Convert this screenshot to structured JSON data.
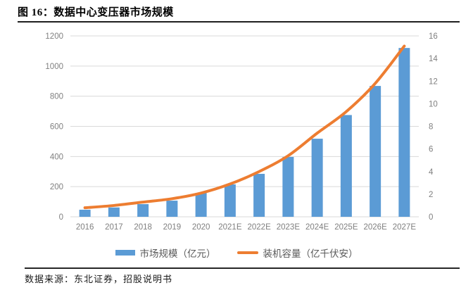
{
  "header": {
    "title": "图 16：数据中心变压器市场规模"
  },
  "legend": {
    "items": [
      {
        "label": "市场规模（亿元）",
        "swatch": "bar"
      },
      {
        "label": "装机容量（亿千伏安）",
        "swatch": "line"
      }
    ]
  },
  "footer": {
    "source": "数据来源：东北证券，招股说明书"
  },
  "chart_data": {
    "type": "bar",
    "subtype": "bar+line dual axis",
    "title": "数据中心变压器市场规模",
    "categories": [
      "2016",
      "2017",
      "2018",
      "2019",
      "2020",
      "2021E",
      "2022E",
      "2023E",
      "2024E",
      "2025E",
      "2026E",
      "2027E"
    ],
    "series": [
      {
        "name": "市场规模（亿元）",
        "type": "bar",
        "axis": "left",
        "values": [
          47,
          62,
          84,
          107,
          158,
          215,
          285,
          397,
          518,
          675,
          868,
          1120
        ]
      },
      {
        "name": "装机容量（亿千伏安）",
        "type": "line",
        "axis": "right",
        "values": [
          0.8,
          1.0,
          1.3,
          1.6,
          2.1,
          2.9,
          4.0,
          5.4,
          7.4,
          9.3,
          11.8,
          15.1
        ]
      }
    ],
    "left_axis": {
      "min": 0,
      "max": 1200,
      "step": 200,
      "ticks": [
        "0",
        "200",
        "400",
        "600",
        "800",
        "1000",
        "1200"
      ]
    },
    "right_axis": {
      "min": 0,
      "max": 16,
      "step": 2,
      "ticks": [
        "0",
        "2",
        "4",
        "6",
        "8",
        "10",
        "12",
        "14",
        "16"
      ]
    },
    "grid": "horizontal only",
    "legend_position": "bottom",
    "colors": {
      "bar": "#5B9BD5",
      "line": "#ED7D31",
      "gridline": "#D9D9D9",
      "tick_text": "#7F7F7F"
    }
  }
}
